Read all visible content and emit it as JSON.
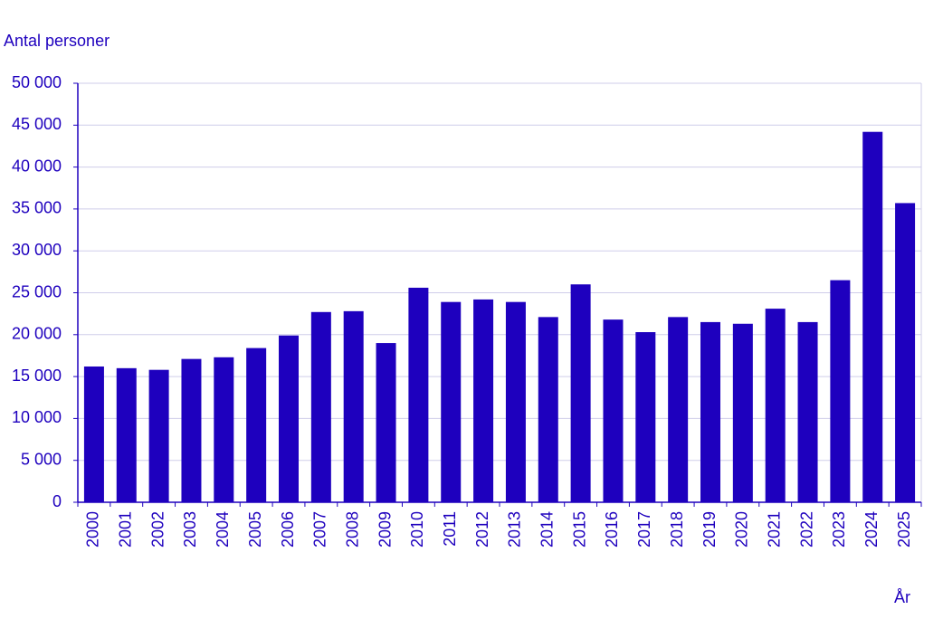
{
  "chart_data": {
    "type": "bar",
    "y_label": "Antal personer",
    "x_label": "År",
    "categories": [
      "2000",
      "2001",
      "2002",
      "2003",
      "2004",
      "2005",
      "2006",
      "2007",
      "2008",
      "2009",
      "2010",
      "2011",
      "2012",
      "2013",
      "2014",
      "2015",
      "2016",
      "2017",
      "2018",
      "2019",
      "2020",
      "2021",
      "2022",
      "2023",
      "2024",
      "2025"
    ],
    "values": [
      16200,
      16000,
      15800,
      17100,
      17300,
      18400,
      19900,
      22700,
      22800,
      19000,
      25600,
      23900,
      24200,
      23900,
      22100,
      26000,
      21800,
      20300,
      22100,
      21500,
      21300,
      23100,
      21500,
      26500,
      44200,
      35700
    ],
    "color": "#1e00be",
    "ylim": [
      0,
      50000
    ],
    "yticks": [
      0,
      {
        "value": 5000,
        "label": "5 000"
      },
      {
        "value": 10000,
        "label": "10 000"
      },
      {
        "value": 15000,
        "label": "15 000"
      },
      {
        "value": 20000,
        "label": "20 000"
      },
      {
        "value": 25000,
        "label": "25 000"
      },
      {
        "value": 30000,
        "label": "30 000"
      },
      {
        "value": 35000,
        "label": "35 000"
      },
      {
        "value": 40000,
        "label": "40 000"
      },
      {
        "value": 45000,
        "label": "45 000"
      },
      {
        "value": 50000,
        "label": "50 000"
      }
    ],
    "grid": true
  }
}
